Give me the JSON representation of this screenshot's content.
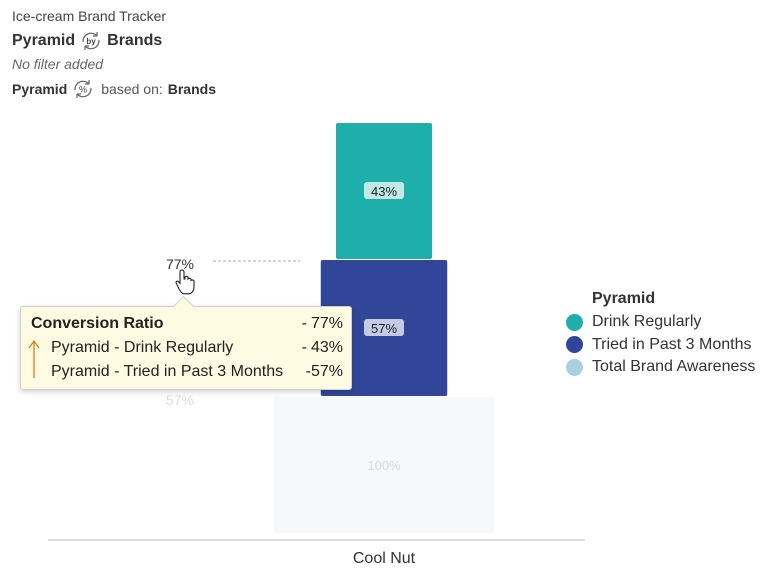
{
  "header": {
    "app_title": "Ice-cream Brand Tracker",
    "title_left": "Pyramid",
    "title_connector": "by",
    "title_right": "Brands",
    "filter_text": "No filter added",
    "based_left": "Pyramid",
    "based_connector": "%",
    "based_middle": "based on:",
    "based_right": "Brands"
  },
  "colors": {
    "drink_regularly": "#1eafaa",
    "tried_past_3_months": "#314699",
    "total_brand_awareness": "#f5f9fc",
    "legend_awareness": "#a9cfe2",
    "tooltip_arrow": "#e07b1a"
  },
  "chart_data": {
    "type": "bar",
    "subtype": "stacked-pyramid",
    "categories": [
      "Cool Nut"
    ],
    "series": [
      {
        "name": "Drink Regularly",
        "values": [
          43
        ],
        "label": "43%"
      },
      {
        "name": "Tried in Past 3 Months",
        "values": [
          57
        ],
        "label": "57%"
      },
      {
        "name": "Total Brand Awareness",
        "values": [
          100
        ],
        "label": "100%"
      }
    ],
    "conversion_labels": [
      "77%",
      "57%"
    ],
    "legend": {
      "title": "Pyramid",
      "position": "right"
    },
    "grid": false
  },
  "tooltip": {
    "title": "Conversion Ratio",
    "title_value": "77%",
    "rows": [
      {
        "name": "Pyramid - Drink Regularly",
        "value": "43%"
      },
      {
        "name": "Pyramid - Tried in Past 3 Months",
        "value": "57%"
      }
    ],
    "separator": "-"
  },
  "legend": {
    "title": "Pyramid",
    "items": [
      {
        "label": "Drink Regularly",
        "color": "#1eafaa"
      },
      {
        "label": "Tried in Past 3 Months",
        "color": "#314699"
      },
      {
        "label": "Total Brand Awareness",
        "color": "#a9cfe2"
      }
    ]
  }
}
